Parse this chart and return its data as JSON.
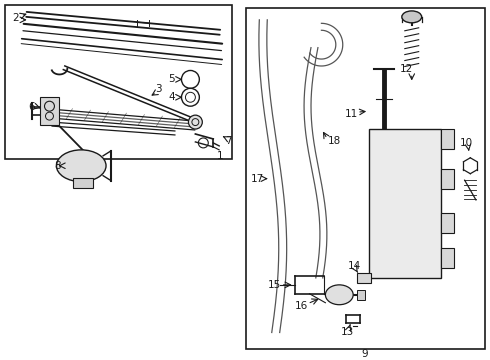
{
  "bg": "#ffffff",
  "lc": "#1a1a1a",
  "fig_w": 4.9,
  "fig_h": 3.6,
  "dpi": 100
}
